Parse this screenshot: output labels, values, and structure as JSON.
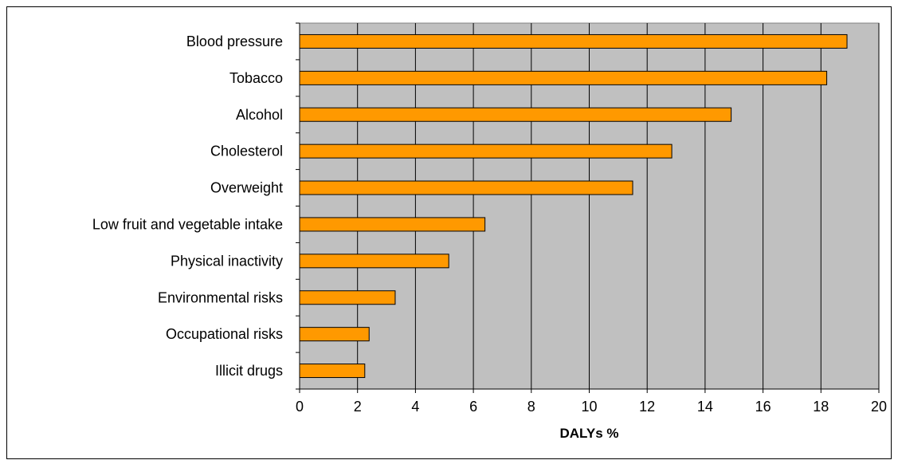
{
  "chart_data": {
    "type": "bar",
    "orientation": "horizontal",
    "categories": [
      "Blood pressure",
      "Tobacco",
      "Alcohol",
      "Cholesterol",
      "Overweight",
      "Low fruit and vegetable intake",
      "Physical inactivity",
      "Environmental risks",
      "Occupational risks",
      "Illicit drugs"
    ],
    "values": [
      18.9,
      18.2,
      14.9,
      12.85,
      11.5,
      6.4,
      5.15,
      3.3,
      2.4,
      2.25
    ],
    "title": "",
    "xlabel": "DALYs %",
    "ylabel": "",
    "xlim": [
      0,
      20
    ],
    "xticks": [
      "0",
      "2",
      "4",
      "6",
      "8",
      "10",
      "12",
      "14",
      "16",
      "18",
      "20"
    ],
    "grid": "vertical",
    "legend": "none"
  },
  "colors": {
    "bar_fill": "#FF9900",
    "plot_background": "#C0C0C0",
    "gridline": "#000000"
  }
}
